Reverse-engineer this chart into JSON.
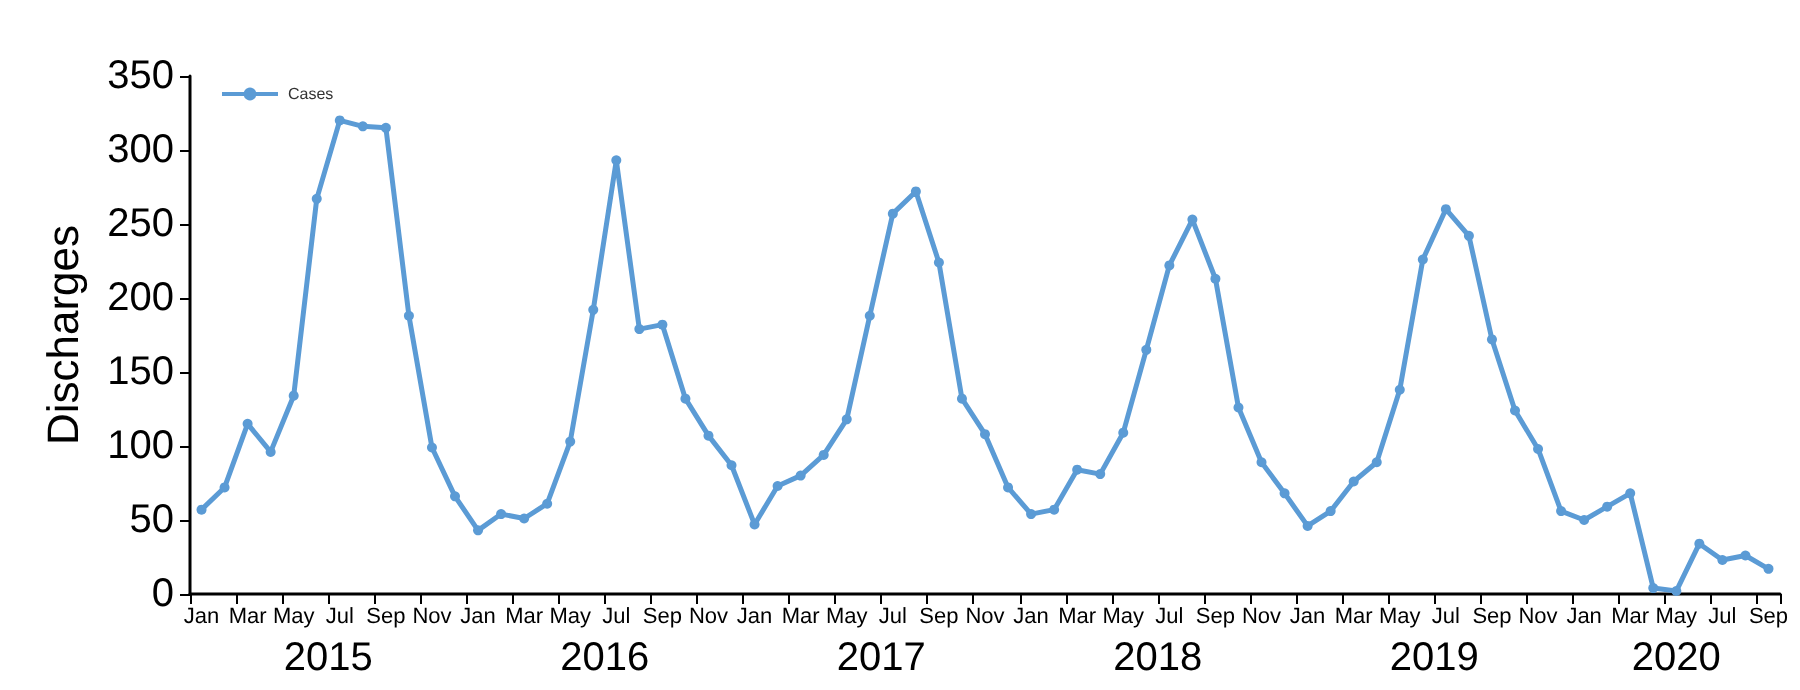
{
  "chart_data": {
    "type": "line",
    "ylabel": "Discharges",
    "categories": [
      "Jan",
      null,
      "Mar",
      null,
      "May",
      null,
      "Jul",
      null,
      "Sep",
      null,
      "Nov",
      null,
      "Jan",
      null,
      "Mar",
      null,
      "May",
      null,
      "Jul",
      null,
      "Sep",
      null,
      "Nov",
      null,
      "Jan",
      null,
      "Mar",
      null,
      "May",
      null,
      "Jul",
      null,
      "Sep",
      null,
      "Nov",
      null,
      "Jan",
      null,
      "Mar",
      null,
      "May",
      null,
      "Jul",
      null,
      "Sep",
      null,
      "Nov",
      null,
      "Jan",
      null,
      "Mar",
      null,
      "May",
      null,
      "Jul",
      null,
      "Sep",
      null,
      "Nov",
      null,
      "Jan",
      null,
      "Mar",
      null,
      "May",
      null,
      "Jul",
      null,
      "Sep"
    ],
    "series": [
      {
        "name": "Cases",
        "color": "#5b9bd5",
        "values": [
          57,
          72,
          115,
          96,
          134,
          267,
          320,
          316,
          315,
          188,
          99,
          66,
          43,
          54,
          51,
          61,
          103,
          192,
          293,
          179,
          182,
          132,
          107,
          87,
          47,
          73,
          80,
          94,
          118,
          188,
          257,
          272,
          224,
          132,
          108,
          72,
          54,
          57,
          84,
          81,
          109,
          165,
          222,
          253,
          213,
          126,
          89,
          68,
          46,
          56,
          76,
          89,
          138,
          226,
          260,
          242,
          172,
          124,
          98,
          56,
          50,
          59,
          68,
          4,
          2,
          34,
          23,
          26,
          17
        ]
      }
    ],
    "annotations": [
      "2015",
      "2016",
      "2017",
      "2018",
      "2019",
      "2020"
    ],
    "ylim": [
      0,
      350
    ],
    "yticks": [
      0,
      50,
      100,
      150,
      200,
      250,
      300,
      350
    ],
    "grid": false,
    "legend": "top left",
    "marker": "circle",
    "line_style": "solid"
  }
}
